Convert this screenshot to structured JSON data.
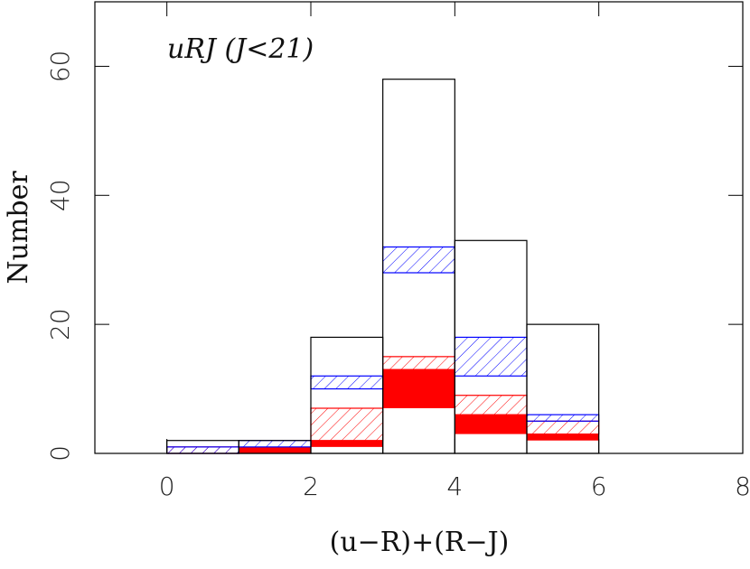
{
  "chart_data": {
    "type": "histogram",
    "title": "uRJ  (J<21)",
    "xlabel": "(u−R)+(R−J)",
    "ylabel": "Number",
    "bins": [
      -1,
      0,
      1,
      2,
      3,
      4,
      5,
      6,
      7,
      8
    ],
    "xlim": [
      -1,
      8
    ],
    "xticks": [
      0,
      2,
      4,
      6,
      8
    ],
    "ylim": [
      0,
      70
    ],
    "yticks": [
      0,
      20,
      40,
      60
    ],
    "series": [
      {
        "color": "#000000",
        "style": "outline",
        "values": [
          0,
          2,
          2,
          18,
          58,
          33,
          20,
          0,
          0
        ]
      },
      {
        "color": "#0000ff",
        "style": "hatch",
        "values": [
          0,
          1,
          2,
          12,
          32,
          18,
          6,
          0,
          0
        ],
        "lower": [
          0,
          0,
          1,
          10,
          28,
          12,
          5,
          0,
          0
        ]
      },
      {
        "color": "#ff0000",
        "style": "hatch",
        "values": [
          0,
          1,
          0,
          7,
          15,
          9,
          5,
          0,
          0
        ],
        "lower": [
          0,
          0,
          0,
          2,
          13,
          6,
          3,
          0,
          0
        ]
      },
      {
        "color": "#ff0000",
        "style": "solid",
        "values": [
          0,
          0,
          1,
          2,
          13,
          6,
          3,
          0,
          0
        ],
        "lower": [
          0,
          0,
          0,
          1,
          7,
          3,
          2,
          0,
          0
        ]
      }
    ]
  }
}
